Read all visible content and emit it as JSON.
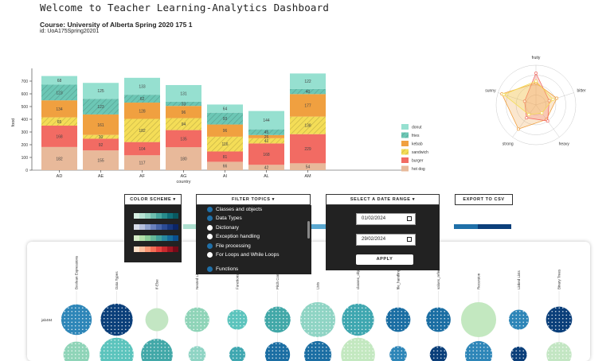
{
  "header": {
    "title": "Welcome to Teacher Learning-Analytics Dashboard",
    "course": "Course: University of Alberta Spring 2020 175 1",
    "course_id": "id: UoA175Spring20201"
  },
  "chart_data": [
    {
      "type": "bar",
      "stacked": true,
      "xlabel": "country",
      "ylabel": "food",
      "ylim": [
        0,
        800
      ],
      "yticks": [
        0,
        100,
        200,
        300,
        400,
        500,
        600,
        700
      ],
      "categories": [
        "AD",
        "AE",
        "AF",
        "AG",
        "AI",
        "AL",
        "AM"
      ],
      "series": [
        {
          "name": "hot dog",
          "color": "#e8b99a",
          "hatched": false,
          "values": [
            182,
            155,
            117,
            180,
            66,
            42,
            54
          ]
        },
        {
          "name": "burger",
          "color": "#f26b63",
          "hatched": false,
          "values": [
            168,
            92,
            104,
            135,
            81,
            168,
            229
          ]
        },
        {
          "name": "sandwich",
          "color": "#f4dd57",
          "hatched": true,
          "values": [
            65,
            30,
            182,
            94,
            116,
            41,
            138
          ]
        },
        {
          "name": "kebab",
          "color": "#f0a040",
          "hatched": false,
          "values": [
            134,
            161,
            128,
            96,
            96,
            25,
            177
          ]
        },
        {
          "name": "fries",
          "color": "#6cc7b5",
          "hatched": true,
          "values": [
            123,
            123,
            62,
            33,
            93,
            45,
            40
          ]
        },
        {
          "name": "donut",
          "color": "#96e0d0",
          "hatched": false,
          "values": [
            68,
            125,
            133,
            131,
            64,
            144,
            122
          ]
        }
      ],
      "data_labels": {
        "AD": [
          "182",
          "168",
          "65",
          "134",
          "123",
          "68"
        ],
        "AE": [
          "155",
          "92",
          "30",
          "161",
          "123",
          "125"
        ],
        "AF": [
          "117",
          "104",
          "182",
          "128",
          "62",
          "133"
        ],
        "AG": [
          "180",
          "135",
          "94",
          "96",
          "33",
          "131"
        ],
        "AI": [
          "66",
          "81",
          "116",
          "96",
          "93",
          "64"
        ],
        "AL": [
          "42",
          "168",
          "41",
          "25",
          "45",
          "144"
        ],
        "AM": [
          "54",
          "229",
          "138",
          "177",
          "40",
          "122"
        ]
      },
      "legend_position": "right"
    },
    {
      "type": "radar",
      "axes": [
        "fruity",
        "bitter",
        "heavy",
        "strong",
        "sunny"
      ],
      "series": [
        {
          "color": "#f0a040",
          "values": [
            0.55,
            0.55,
            0.45,
            0.75,
            0.9
          ]
        },
        {
          "color": "#f26b63",
          "values": [
            0.8,
            0.35,
            0.5,
            0.4,
            0.3
          ]
        },
        {
          "color": "#f4dd57",
          "values": [
            0.6,
            0.45,
            0.25,
            0.3,
            0.85
          ]
        }
      ]
    }
  ],
  "controls": {
    "color_scheme": "COLOR SCHEME ▾",
    "filter_topics": "FILTER TOPICS ▾",
    "date_range": "SELECT A DATE RANGE ▾",
    "export": "EXPORT TO CSV"
  },
  "color_schemes": [
    [
      "#d8f0e4",
      "#b8e3d4",
      "#95d3c2",
      "#6fbfb0",
      "#48a79f",
      "#288c8c",
      "#0f6f78",
      "#085860"
    ],
    [
      "#d7dce9",
      "#b5bedc",
      "#8d9fcd",
      "#6a80bc",
      "#4864a8",
      "#2c4b94",
      "#17367d",
      "#0b2566"
    ],
    [
      "#d6edc8",
      "#b2dfa8",
      "#8ccd99",
      "#65b898",
      "#42a19a",
      "#2888a0",
      "#146c9c",
      "#0a4f8f"
    ],
    [
      "#fde0c8",
      "#fcbf9e",
      "#fb9876",
      "#f56e56",
      "#e64540",
      "#c92a2e",
      "#a11622",
      "#750a18"
    ]
  ],
  "topics": [
    {
      "label": "Classes and objects",
      "color": "#1f6fa8"
    },
    {
      "label": "Data Types",
      "color": "#1f6fa8"
    },
    {
      "label": "Dictionary",
      "color": "#ffffff"
    },
    {
      "label": "Exception handling",
      "color": "#ffffff"
    },
    {
      "label": "File processing",
      "color": "#1f6fa8"
    },
    {
      "label": "For Loops and While Loops",
      "color": "#ffffff"
    },
    {
      "label": "Functions",
      "color": "#1f6fa8"
    }
  ],
  "dates": {
    "start": "01/02/2024",
    "end": "29/02/2024",
    "apply": "APPLY"
  },
  "bubble_chart": {
    "row_label": "jab484",
    "columns": [
      "Boolean Expressions",
      "Data Types",
      "If-Else",
      "Nested Lists",
      "Functions",
      "Pitch Competit...",
      "Lists",
      "classes_obje...",
      "file_handling",
      "values_referenc...",
      "Recursion",
      "Linked Lists",
      "Binary Trees"
    ],
    "bubbles": [
      {
        "size": 0.8,
        "color": "#2e86b8",
        "dotted": true
      },
      {
        "size": 0.85,
        "color": "#0b3f7a",
        "dotted": true
      },
      {
        "size": 0.55,
        "color": "#c3e6c3",
        "dotted": false
      },
      {
        "size": 0.6,
        "color": "#8fd4b8",
        "dotted": true
      },
      {
        "size": 0.45,
        "color": "#5cc4bd",
        "dotted": true
      },
      {
        "size": 0.65,
        "color": "#42a8a8",
        "dotted": true
      },
      {
        "size": 0.95,
        "color": "#8fd4c4",
        "dotted": true
      },
      {
        "size": 0.85,
        "color": "#3fa7b0",
        "dotted": true
      },
      {
        "size": 0.6,
        "color": "#1b6ea3",
        "dotted": true
      },
      {
        "size": 0.6,
        "color": "#1b6ea3",
        "dotted": true
      },
      {
        "size": 0.95,
        "color": "#c3e8c0",
        "dotted": false
      },
      {
        "size": 0.45,
        "color": "#2e86b8",
        "dotted": true
      },
      {
        "size": 0.65,
        "color": "#0b3f7a",
        "dotted": true
      }
    ]
  },
  "date_slider": {
    "segments": [
      "#aee0d0",
      "#5aa8d0",
      "#1f6fa8",
      "#0b3f7a"
    ]
  }
}
